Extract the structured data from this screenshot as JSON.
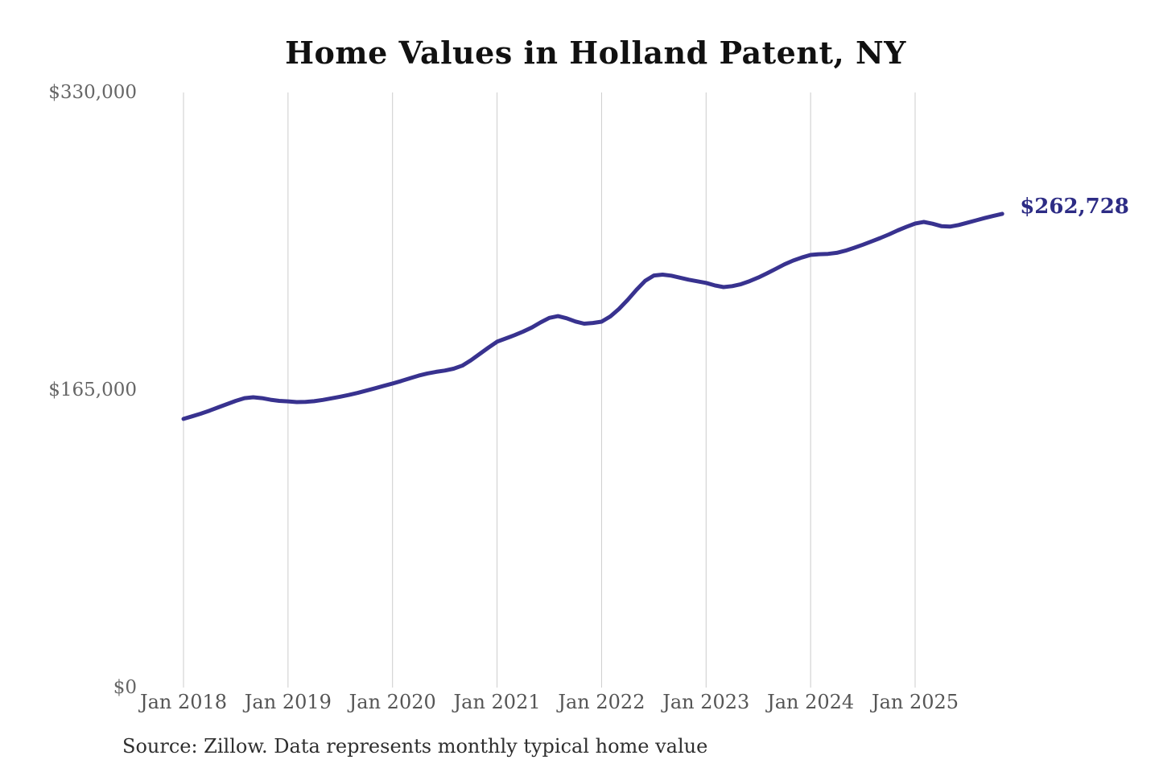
{
  "chart_data": {
    "type": "line",
    "title": "Home Values in Holland Patent, NY",
    "source": "Source: Zillow. Data represents monthly typical home value",
    "xlabel": "",
    "ylabel": "",
    "ylim": [
      0,
      330000
    ],
    "grid": "vertical-yearly",
    "legend": "none",
    "x_ticks": [
      "Jan 2018",
      "Jan 2019",
      "Jan 2020",
      "Jan 2021",
      "Jan 2022",
      "Jan 2023",
      "Jan 2024",
      "Jan 2025"
    ],
    "y_ticks": [
      {
        "label": "$330,000",
        "value": 330000
      },
      {
        "label": "$165,000",
        "value": 165000
      },
      {
        "label": "$0",
        "value": 0
      }
    ],
    "end_label": "$262,728",
    "end_value": 262728,
    "line_color": "#38328f",
    "end_label_color": "#2d2c85",
    "gridline_color": "#cccccc",
    "series": [
      {
        "name": "Monthly typical home value",
        "start_month": "2018-01",
        "frequency": "monthly",
        "values": [
          149000,
          150400,
          151900,
          153600,
          155400,
          157200,
          159000,
          160500,
          161000,
          160500,
          159600,
          159000,
          158700,
          158300,
          158400,
          158800,
          159500,
          160400,
          161300,
          162300,
          163400,
          164700,
          166000,
          167300,
          168600,
          170000,
          171500,
          173000,
          174200,
          175100,
          175800,
          176800,
          178500,
          181500,
          185000,
          188500,
          191800,
          193600,
          195400,
          197400,
          199700,
          202500,
          205000,
          206000,
          204800,
          203000,
          201800,
          202200,
          202900,
          205800,
          210000,
          215000,
          220500,
          225500,
          228500,
          229000,
          228400,
          227300,
          226200,
          225300,
          224400,
          223000,
          222100,
          222600,
          223700,
          225400,
          227400,
          229700,
          232200,
          234700,
          236800,
          238500,
          239900,
          240300,
          240500,
          241100,
          242300,
          243900,
          245600,
          247400,
          249300,
          251300,
          253500,
          255500,
          257300,
          258200,
          257200,
          255900,
          255600,
          256500,
          257800,
          259100,
          260400,
          261600,
          262728
        ]
      }
    ]
  }
}
